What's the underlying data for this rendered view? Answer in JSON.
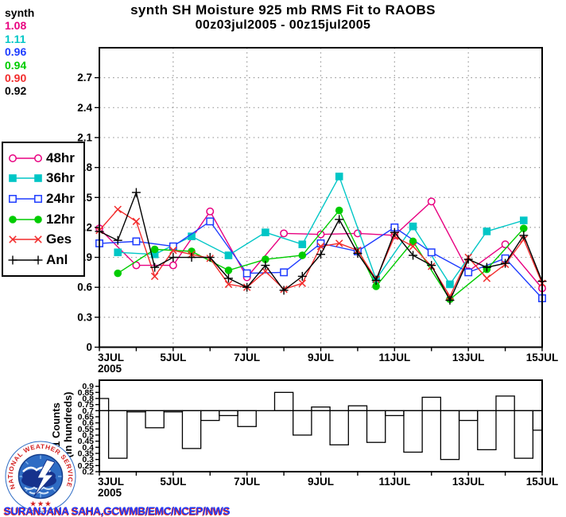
{
  "title": {
    "line1": "synth SH Moisture 925 mb RMS Fit to RAOBS",
    "line2": "00z03jul2005 - 00z15jul2005"
  },
  "stats": {
    "heading": "synth",
    "values": [
      {
        "text": "1.08",
        "color": "#e80080"
      },
      {
        "text": "1.11",
        "color": "#00c6c6"
      },
      {
        "text": "0.96",
        "color": "#1e3cff"
      },
      {
        "text": "0.94",
        "color": "#00cc00"
      },
      {
        "text": "0.90",
        "color": "#f22c2c"
      },
      {
        "text": "0.92",
        "color": "#000000"
      }
    ]
  },
  "legend": {
    "items": [
      {
        "label": "48hr",
        "color": "#e80080",
        "marker": "circle-open"
      },
      {
        "label": "36hr",
        "color": "#00c6c6",
        "marker": "square-filled"
      },
      {
        "label": "24hr",
        "color": "#1e3cff",
        "marker": "square-open"
      },
      {
        "label": "12hr",
        "color": "#00cc00",
        "marker": "circle-filled"
      },
      {
        "label": "Ges",
        "color": "#f22c2c",
        "marker": "x"
      },
      {
        "label": "Anl",
        "color": "#000000",
        "marker": "plus"
      }
    ]
  },
  "footer": {
    "credit": "SURANJANA SAHA,GCWMB/EMC/NCEP/NWS"
  },
  "logo": {
    "ring_text": "NATIONAL WEATHER SERVICE",
    "stars": "★ ★ ★"
  },
  "chart_data": [
    {
      "type": "line",
      "panel": "rms-fit",
      "ylim": [
        0,
        3
      ],
      "ytick_step": 0.3,
      "yticklabels": [
        "0",
        "0.3",
        "0.6",
        "0.9",
        "1.2",
        "1.5",
        "1.8",
        "2.1",
        "2.4",
        "2.7"
      ],
      "grid": true,
      "x_points": 25,
      "x_interval": "12h from 00z03jul2005 to 00z15jul2005",
      "x_ticks": [
        {
          "label": "3JUL",
          "day": 3,
          "sub": "2005"
        },
        {
          "label": "5JUL",
          "day": 5
        },
        {
          "label": "7JUL",
          "day": 7
        },
        {
          "label": "9JUL",
          "day": 9
        },
        {
          "label": "11JUL",
          "day": 11
        },
        {
          "label": "13JUL",
          "day": 13
        },
        {
          "label": "15JUL",
          "day": 15
        }
      ],
      "series": [
        {
          "name": "48hr",
          "color": "#e80080",
          "marker": "circle-open",
          "x_indices": [
            0,
            2,
            4,
            6,
            8,
            10,
            12,
            14,
            16,
            18,
            20,
            22,
            24
          ],
          "values": [
            1.19,
            0.82,
            0.82,
            1.36,
            0.7,
            1.14,
            1.13,
            1.14,
            1.12,
            1.46,
            0.76,
            1.03,
            0.59
          ]
        },
        {
          "name": "36hr",
          "color": "#00c6c6",
          "marker": "square-filled",
          "x_indices": [
            1,
            3,
            5,
            7,
            9,
            11,
            13,
            15,
            17,
            19,
            21,
            23
          ],
          "values": [
            0.95,
            0.93,
            1.11,
            0.92,
            1.15,
            1.03,
            1.71,
            0.68,
            1.21,
            0.63,
            1.16,
            1.27
          ]
        },
        {
          "name": "24hr",
          "color": "#1e3cff",
          "marker": "square-open",
          "x_indices": [
            0,
            2,
            4,
            6,
            8,
            10,
            12,
            14,
            16,
            18,
            20,
            22,
            24
          ],
          "values": [
            1.04,
            1.06,
            1.01,
            1.26,
            0.74,
            0.75,
            1.04,
            0.96,
            1.2,
            0.95,
            0.75,
            0.89,
            0.49
          ]
        },
        {
          "name": "12hr",
          "color": "#00cc00",
          "marker": "circle-filled",
          "x_indices": [
            1,
            3,
            5,
            7,
            9,
            11,
            13,
            15,
            17,
            19,
            21,
            23
          ],
          "values": [
            0.74,
            0.98,
            0.96,
            0.77,
            0.88,
            0.92,
            1.37,
            0.61,
            1.06,
            0.48,
            0.78,
            1.19
          ]
        },
        {
          "name": "Ges",
          "color": "#f22c2c",
          "marker": "x",
          "x_indices": [
            0,
            1,
            2,
            3,
            4,
            5,
            6,
            7,
            8,
            9,
            10,
            11,
            12,
            13,
            14,
            15,
            16,
            17,
            18,
            19,
            20,
            21,
            22,
            23,
            24
          ],
          "values": [
            1.17,
            1.38,
            1.26,
            0.71,
            0.97,
            0.93,
            0.89,
            0.63,
            0.6,
            0.76,
            0.58,
            0.64,
            1.01,
            1.04,
            0.97,
            0.68,
            1.11,
            1.01,
            0.81,
            0.51,
            0.9,
            0.69,
            0.83,
            1.08,
            0.64
          ]
        },
        {
          "name": "Anl",
          "color": "#000000",
          "marker": "plus",
          "x_indices": [
            0,
            1,
            2,
            3,
            4,
            5,
            6,
            7,
            8,
            9,
            10,
            11,
            12,
            13,
            14,
            15,
            16,
            17,
            18,
            19,
            20,
            21,
            22,
            23,
            24
          ],
          "values": [
            1.16,
            1.07,
            1.55,
            0.8,
            0.9,
            0.9,
            0.9,
            0.69,
            0.6,
            0.82,
            0.57,
            0.71,
            0.93,
            1.28,
            0.94,
            0.67,
            1.15,
            0.92,
            0.82,
            0.47,
            0.88,
            0.8,
            0.84,
            1.12,
            0.66
          ]
        }
      ]
    },
    {
      "type": "bar",
      "panel": "counts",
      "ylabel_line1": "1 Counts",
      "ylabel_line2": "(in hundreds)",
      "ylim": [
        0.2,
        0.95
      ],
      "ref_line": 0.7,
      "yticklabels": [
        "0.2",
        "0.25",
        "0.3",
        "0.35",
        "0.4",
        "0.45",
        "0.5",
        "0.55",
        "0.6",
        "0.65",
        "0.7",
        "0.75",
        "0.8",
        "0.85",
        "0.9"
      ],
      "x_ticks": [
        {
          "label": "3JUL",
          "day": 3,
          "sub": "2005"
        },
        {
          "label": "5JUL",
          "day": 5
        },
        {
          "label": "7JUL",
          "day": 7
        },
        {
          "label": "9JUL",
          "day": 9
        },
        {
          "label": "11JUL",
          "day": 11
        },
        {
          "label": "13JUL",
          "day": 13
        },
        {
          "label": "15JUL",
          "day": 15
        }
      ],
      "values": [
        0.8,
        0.31,
        0.69,
        0.56,
        0.69,
        0.39,
        0.62,
        0.66,
        0.57,
        0.7,
        0.85,
        0.5,
        0.73,
        0.42,
        0.74,
        0.44,
        0.66,
        0.36,
        0.81,
        0.3,
        0.62,
        0.38,
        0.82,
        0.31,
        0.54
      ]
    }
  ]
}
